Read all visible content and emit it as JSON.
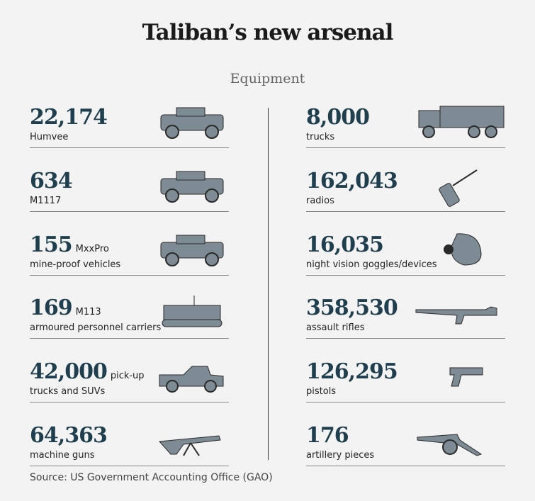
{
  "header": {
    "title": "Taliban’s new arsenal",
    "subtitle": "Equipment"
  },
  "columns": [
    {
      "items": [
        {
          "number": "22,174",
          "label": "Humvee"
        },
        {
          "number": "634",
          "label": "M1117"
        },
        {
          "number": "155",
          "suffix": "MxxPro",
          "label": "mine-proof vehicles"
        },
        {
          "number": "169",
          "suffix": "M113",
          "label": "armoured personnel carriers"
        },
        {
          "number": "42,000",
          "suffix": "pick-up",
          "label": "trucks and SUVs"
        },
        {
          "number": "64,363",
          "label": "machine guns"
        }
      ]
    },
    {
      "items": [
        {
          "number": "8,000",
          "label": "trucks"
        },
        {
          "number": "162,043",
          "label": "radios"
        },
        {
          "number": "16,035",
          "label": "night vision goggles/devices"
        },
        {
          "number": "358,530",
          "label": "assault rifles"
        },
        {
          "number": "126,295",
          "label": "pistols"
        },
        {
          "number": "176",
          "label": "artillery pieces"
        }
      ]
    }
  ],
  "footer": {
    "source": "Source: US Government Accounting Office (GAO)"
  }
}
